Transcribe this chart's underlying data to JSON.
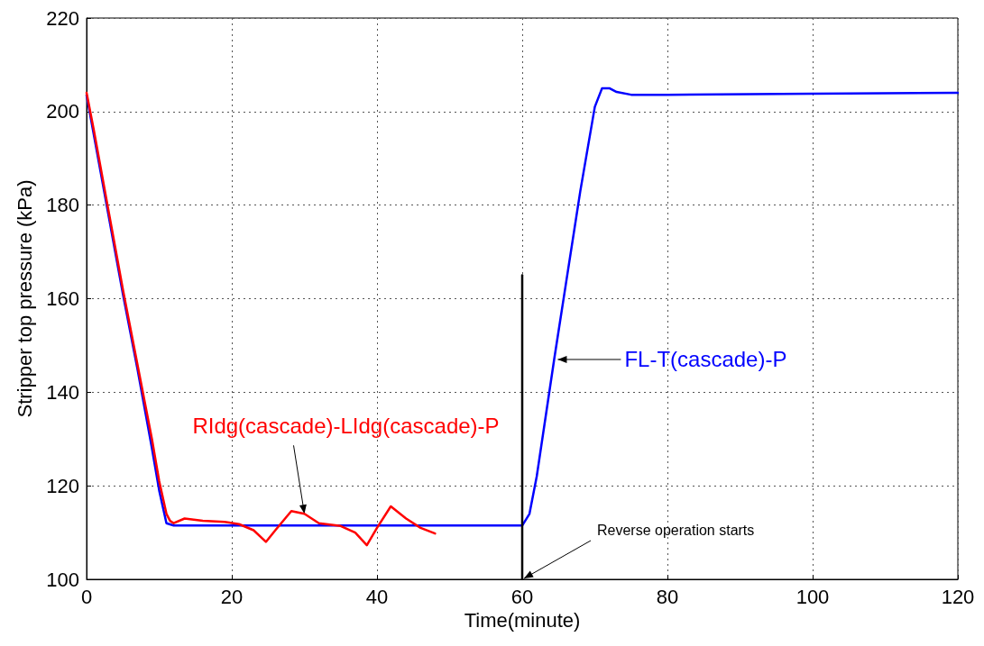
{
  "chart_data": {
    "type": "line",
    "xlabel": "Time(minute)",
    "ylabel": "Stripper top pressure (kPa)",
    "xlim": [
      0,
      120
    ],
    "xticks": [
      0,
      20,
      40,
      60,
      80,
      100,
      120
    ],
    "ylim": [
      100,
      220
    ],
    "yticks": [
      100,
      120,
      140,
      160,
      180,
      200,
      220
    ],
    "grid": true,
    "legend": false,
    "marker": "none",
    "line_style": "solid",
    "annotations": [
      {
        "text": "Reverse operation starts",
        "x": 60,
        "y": 100
      }
    ],
    "series": [
      {
        "name": "FL-T(cascade)-P",
        "color": "#0000ff",
        "x": [
          0,
          1,
          3,
          5,
          7,
          9,
          10,
          11,
          12,
          15,
          20,
          30,
          40,
          50,
          60,
          61,
          62,
          64.4,
          66,
          68,
          70,
          71,
          72,
          73,
          75,
          80,
          100,
          120
        ],
        "values": [
          203.5,
          195,
          178,
          161,
          145,
          128,
          119,
          112,
          111.5,
          111.5,
          111.5,
          111.5,
          111.5,
          111.5,
          111.5,
          114,
          122,
          147,
          163,
          183,
          201,
          205,
          205,
          204.2,
          203.6,
          203.6,
          203.8,
          204
        ]
      },
      {
        "name": "RIdg(cascade)-LIdg(cascade)-P",
        "color": "#ff0000",
        "x": [
          0,
          1,
          3,
          5,
          7,
          9,
          10,
          11,
          11.5,
          12,
          13.5,
          16,
          19,
          21,
          23,
          24.7,
          26,
          28.2,
          30,
          32,
          35,
          37,
          38.6,
          40,
          41.9,
          44,
          46,
          48
        ],
        "values": [
          204,
          196,
          179,
          162,
          146,
          130,
          121,
          114,
          112.5,
          112,
          113,
          112.5,
          112.3,
          111.8,
          110.5,
          108,
          110.5,
          114.6,
          114,
          112,
          111.4,
          110,
          107.3,
          111,
          115.6,
          113,
          111,
          109.8
        ]
      },
      {
        "color": "#000000",
        "x": [
          60,
          60
        ],
        "values": [
          100,
          165
        ]
      }
    ]
  }
}
